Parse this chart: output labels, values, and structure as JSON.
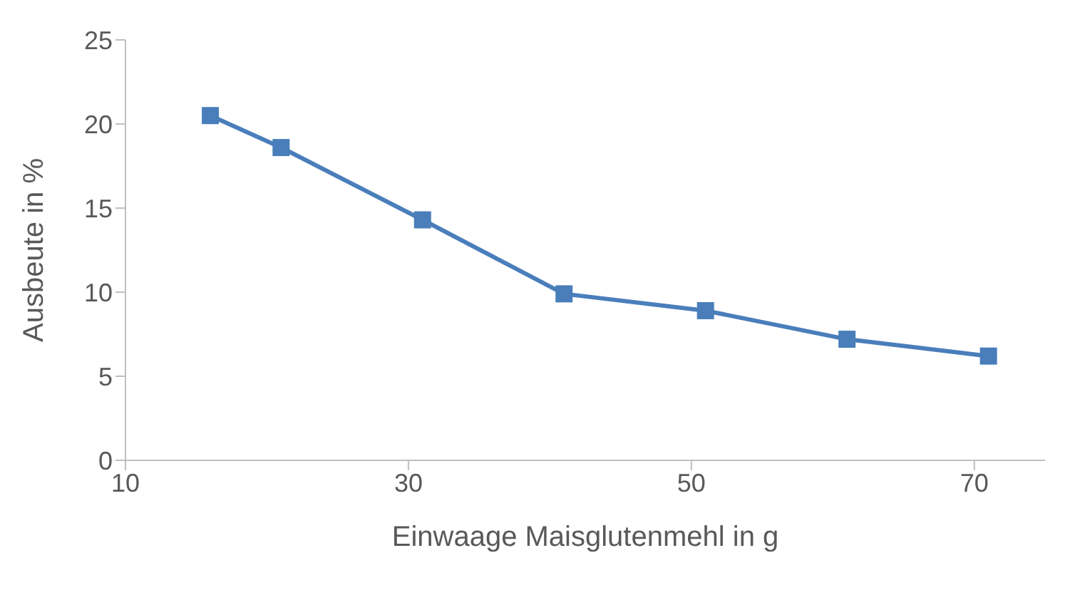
{
  "chart_data": {
    "type": "line",
    "xlabel": "Einwaage Maisglutenmehl in g",
    "ylabel": "Ausbeute in %",
    "x": [
      16,
      21,
      31,
      41,
      51,
      61,
      71
    ],
    "series": [
      {
        "color": "#4a7ebb",
        "values": [
          20.5,
          18.6,
          14.3,
          9.9,
          8.9,
          7.2,
          6.2
        ]
      }
    ],
    "xlim": [
      10,
      75
    ],
    "xticks": [
      10,
      30,
      50,
      70
    ],
    "ylim": [
      0,
      25
    ],
    "yticks": [
      0,
      5,
      10,
      15,
      20,
      25
    ],
    "grid": false,
    "legend": false,
    "marker": "square",
    "line_style": "solid"
  }
}
